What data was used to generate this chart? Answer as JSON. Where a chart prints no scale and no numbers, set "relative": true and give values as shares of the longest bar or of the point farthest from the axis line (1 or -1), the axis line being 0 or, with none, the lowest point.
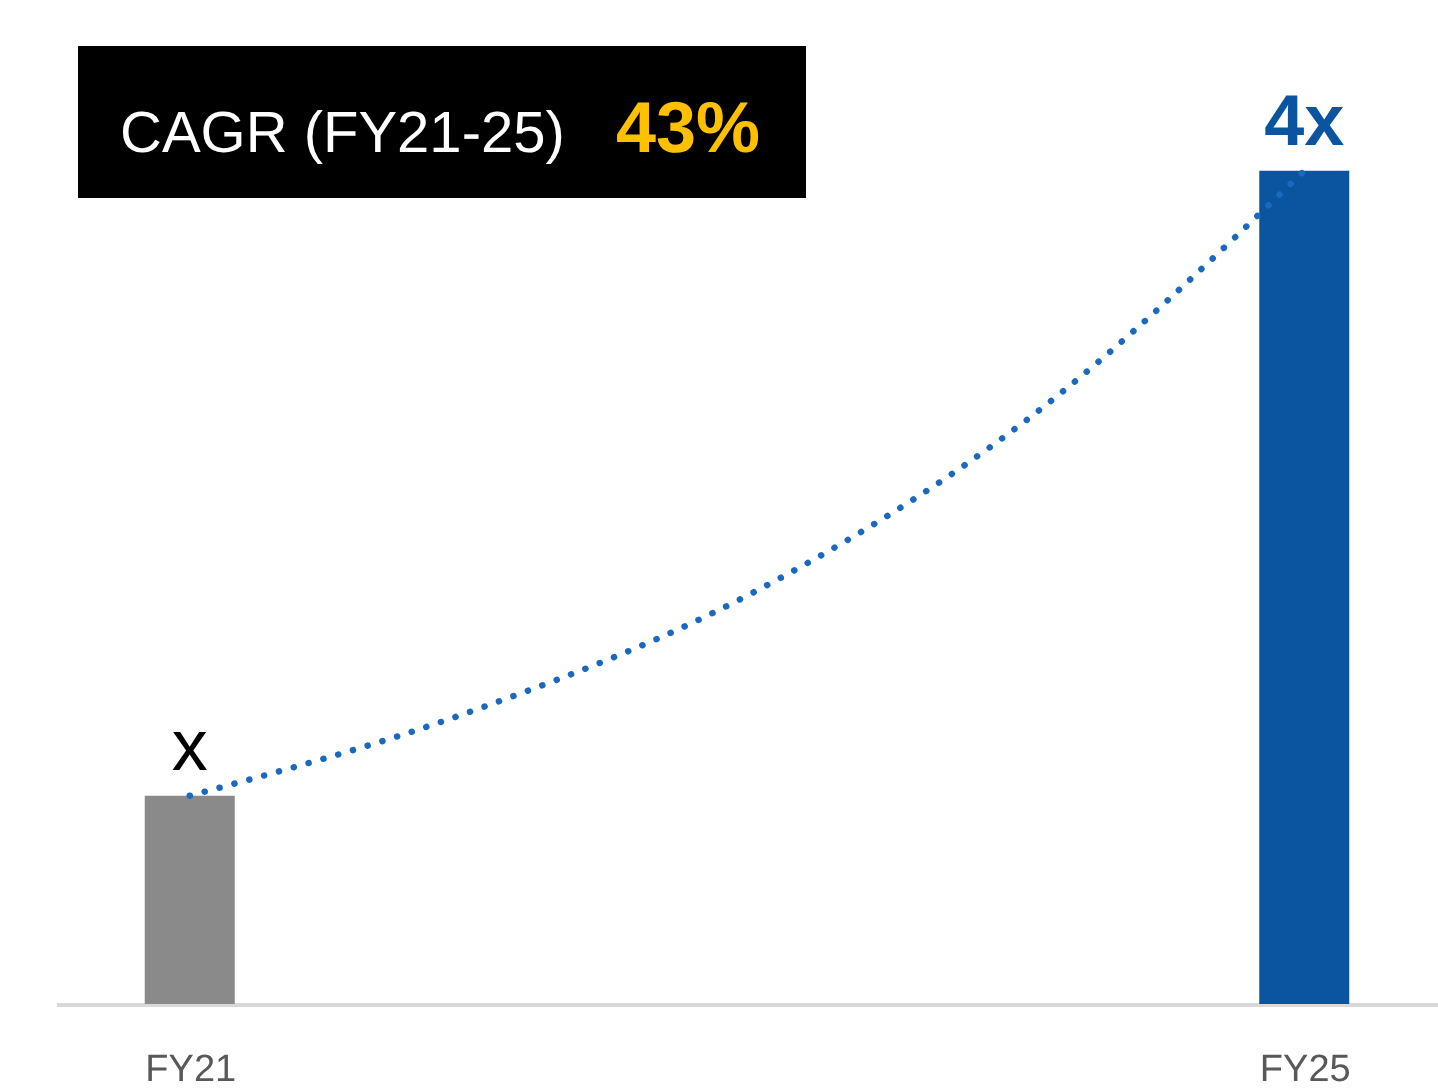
{
  "chart_data": {
    "type": "bar",
    "relative": true,
    "categories": [
      "FY21",
      null,
      null,
      null,
      "FY25"
    ],
    "series": [
      {
        "colors": [
          "#8a8a8a",
          null,
          null,
          null,
          "#0b549f"
        ],
        "values": [
          0.25,
          null,
          null,
          null,
          1
        ]
      },
      {
        "type": "line",
        "line_style": "dotted",
        "color": "#1a69bd",
        "values": [
          0.25,
          0.35,
          0.49,
          0.7,
          1
        ]
      }
    ],
    "annotations": [
      "CAGR (FY21-25)",
      "43%",
      {
        "text": "x",
        "x": "FY21",
        "y": 0.25
      },
      {
        "text": "4x",
        "x": "FY25",
        "y": 1
      }
    ]
  }
}
